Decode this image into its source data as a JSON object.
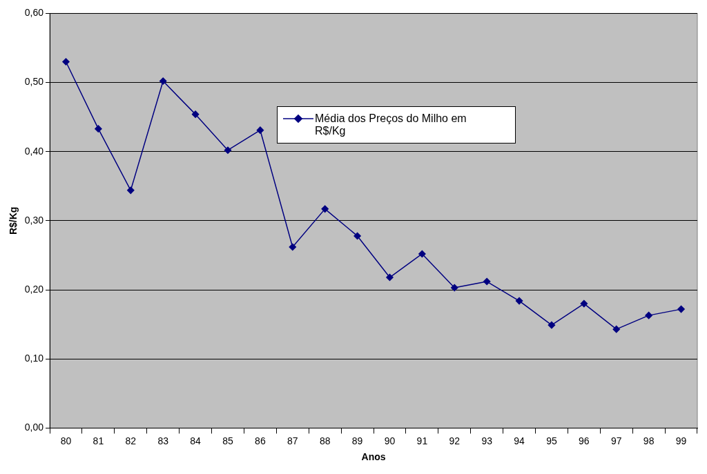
{
  "chart_data": {
    "type": "line",
    "xlabel": "Anos",
    "ylabel": "R$/Kg",
    "categories": [
      "80",
      "81",
      "82",
      "83",
      "84",
      "85",
      "86",
      "87",
      "88",
      "89",
      "90",
      "91",
      "92",
      "93",
      "94",
      "95",
      "96",
      "97",
      "98",
      "99"
    ],
    "series": [
      {
        "name": "Média dos Preços do Milho em R$/Kg",
        "color": "#000080",
        "values": [
          0.53,
          0.433,
          0.344,
          0.502,
          0.454,
          0.402,
          0.431,
          0.262,
          0.317,
          0.278,
          0.218,
          0.252,
          0.203,
          0.212,
          0.184,
          0.149,
          0.18,
          0.143,
          0.163,
          0.172
        ]
      }
    ],
    "ylim": [
      0,
      0.6
    ],
    "yticks": [
      {
        "value": 0,
        "label": "0,00"
      },
      {
        "value": 0.1,
        "label": "0,10"
      },
      {
        "value": 0.2,
        "label": "0,20"
      },
      {
        "value": 0.3,
        "label": "0,30"
      },
      {
        "value": 0.4,
        "label": "0,40"
      },
      {
        "value": 0.5,
        "label": "0,50"
      },
      {
        "value": 0.6,
        "label": "0,60"
      }
    ],
    "grid": "y",
    "legend": "top",
    "marker": "diamond",
    "line_style": "solid"
  }
}
